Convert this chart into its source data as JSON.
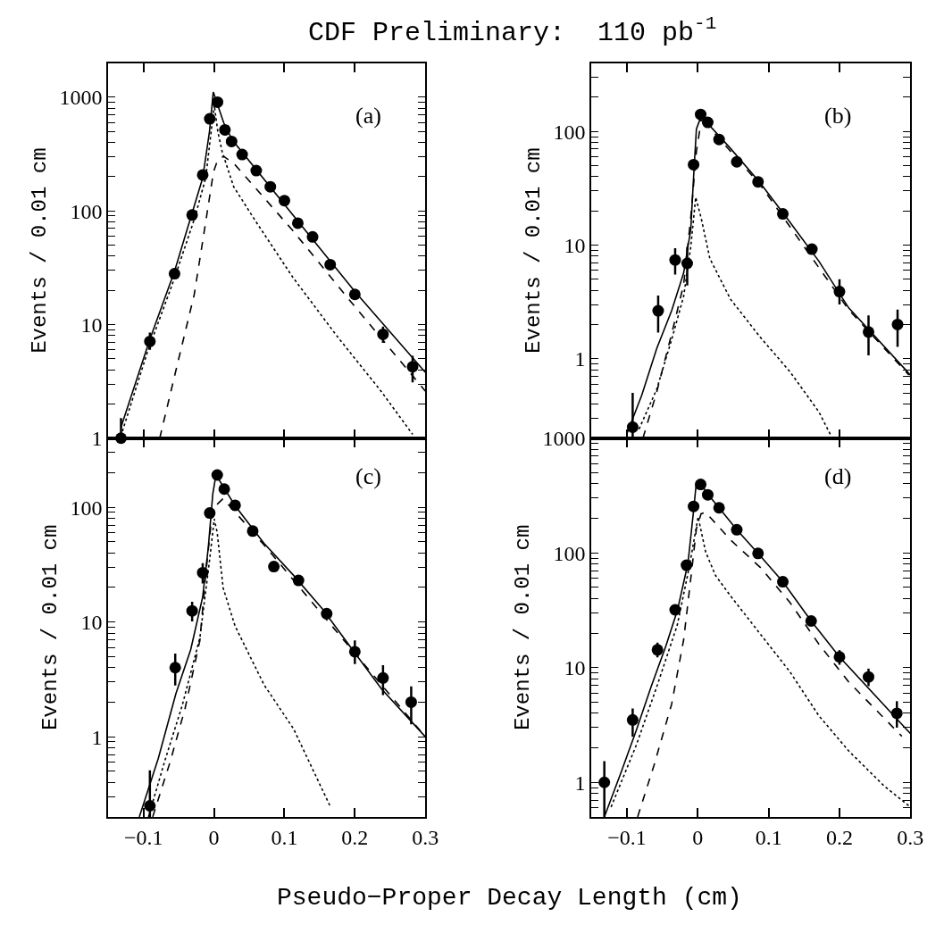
{
  "chart_data": [
    {
      "type": "line",
      "title": "CDF Preliminary:  110 pb$^{-1}$",
      "ylabel": "Events / 0.01 cm",
      "annotations": [
        "(a)"
      ],
      "xlim": [
        -0.15,
        0.3
      ],
      "xticks": [
        {
          "value": -0.1,
          "label": null
        },
        {
          "value": 0,
          "label": null
        },
        {
          "value": 0.1,
          "label": null
        },
        {
          "value": 0.2,
          "label": null
        },
        {
          "value": 0.3,
          "label": null
        }
      ],
      "ylim": [
        1,
        2000
      ],
      "yticks": [
        1,
        {
          "value": 2,
          "label": null
        },
        {
          "value": 3,
          "label": null
        },
        {
          "value": 4,
          "label": null
        },
        {
          "value": 5,
          "label": null
        },
        {
          "value": 6,
          "label": null
        },
        {
          "value": 7,
          "label": null
        },
        {
          "value": 8,
          "label": null
        },
        {
          "value": 9,
          "label": null
        },
        10,
        {
          "value": 20,
          "label": null
        },
        {
          "value": 30,
          "label": null
        },
        {
          "value": 40,
          "label": null
        },
        {
          "value": 50,
          "label": null
        },
        {
          "value": 60,
          "label": null
        },
        {
          "value": 70,
          "label": null
        },
        {
          "value": 80,
          "label": null
        },
        {
          "value": 90,
          "label": null
        },
        100,
        {
          "value": 200,
          "label": null
        },
        {
          "value": 300,
          "label": null
        },
        {
          "value": 400,
          "label": null
        },
        {
          "value": 500,
          "label": null
        },
        {
          "value": 600,
          "label": null
        },
        {
          "value": 700,
          "label": null
        },
        {
          "value": 800,
          "label": null
        },
        {
          "value": 900,
          "label": null
        },
        1000
      ],
      "log": "y",
      "grid": false,
      "tick_labels": "y",
      "series": [
        {
          "type": "scatter",
          "marker": "circle",
          "color": "#000000",
          "x": [
            -0.132,
            -0.091,
            -0.056,
            -0.031,
            -0.016,
            -0.006,
            0.005,
            0.0155,
            0.025,
            0.04,
            0.06,
            0.08,
            0.1,
            0.119,
            0.14,
            0.165,
            0.2,
            0.24,
            0.282
          ],
          "values": [
            1.0,
            7.1,
            28,
            92,
            207,
            646,
            904,
            516,
            408,
            313,
            226,
            163,
            123,
            78,
            59,
            33.6,
            18.4,
            8.2,
            4.25
          ],
          "errors": [
            [
              1,
              1.5
            ],
            [
              6.0,
              8.5
            ],
            null,
            null,
            null,
            null,
            null,
            null,
            null,
            null,
            null,
            null,
            null,
            null,
            null,
            null,
            null,
            [
              6.9,
              9.6
            ],
            [
              3.1,
              5.3
            ]
          ]
        },
        {
          "line_style": "solid",
          "color": "#000000",
          "x": [
            -0.132,
            -0.091,
            -0.056,
            -0.031,
            -0.016,
            -0.0063,
            -0.001,
            0.0137,
            0.026,
            0.2,
            0.3
          ],
          "values": [
            1.25,
            7.4,
            29.5,
            96,
            195,
            503,
            1113,
            598,
            420,
            19.5,
            3.8
          ]
        },
        {
          "line_style": "dashed",
          "color": "#000000",
          "x": [
            -0.077,
            -0.053,
            -0.028,
            -0.0117,
            -0.0007,
            0.005,
            0.0137,
            0.03,
            0.112,
            0.196,
            0.3
          ],
          "values": [
            1.0,
            4.2,
            18.4,
            80,
            220,
            277,
            303,
            254,
            67,
            15.4,
            2.6
          ]
        },
        {
          "line_style": "dotted",
          "color": "#000000",
          "x": [
            -0.13,
            -0.095,
            -0.057,
            -0.028,
            -0.0117,
            0.0004,
            0.0054,
            0.0117,
            0.028,
            0.057,
            0.112,
            0.174,
            0.237,
            0.282
          ],
          "values": [
            1.15,
            5.6,
            24.6,
            84,
            195,
            854,
            500,
            330,
            163,
            85,
            26,
            8,
            2.6,
            1.08
          ]
        }
      ]
    },
    {
      "type": "line",
      "ylabel": "Events / 0.01 cm",
      "annotations": [
        "(b)"
      ],
      "xlim": [
        -0.15,
        0.3
      ],
      "xticks": [
        {
          "value": -0.1,
          "label": null
        },
        {
          "value": 0,
          "label": null
        },
        {
          "value": 0.1,
          "label": null
        },
        {
          "value": 0.2,
          "label": null
        },
        {
          "value": 0.3,
          "label": null
        }
      ],
      "ylim": [
        0.2,
        400
      ],
      "yticks": [
        {
          "value": 0.2,
          "label": null
        },
        {
          "value": 0.3,
          "label": null
        },
        {
          "value": 0.4,
          "label": null
        },
        {
          "value": 0.5,
          "label": null
        },
        {
          "value": 0.6,
          "label": null
        },
        {
          "value": 0.7,
          "label": null
        },
        {
          "value": 0.8,
          "label": null
        },
        {
          "value": 0.9,
          "label": null
        },
        1,
        {
          "value": 2,
          "label": null
        },
        {
          "value": 3,
          "label": null
        },
        {
          "value": 4,
          "label": null
        },
        {
          "value": 5,
          "label": null
        },
        {
          "value": 6,
          "label": null
        },
        {
          "value": 7,
          "label": null
        },
        {
          "value": 8,
          "label": null
        },
        {
          "value": 9,
          "label": null
        },
        10,
        {
          "value": 20,
          "label": null
        },
        {
          "value": 30,
          "label": null
        },
        {
          "value": 40,
          "label": null
        },
        {
          "value": 50,
          "label": null
        },
        {
          "value": 60,
          "label": null
        },
        {
          "value": 70,
          "label": null
        },
        {
          "value": 80,
          "label": null
        },
        {
          "value": 90,
          "label": null
        },
        100,
        {
          "value": 200,
          "label": null
        },
        {
          "value": 300,
          "label": null
        }
      ],
      "log": "y",
      "grid": false,
      "tick_labels": "y",
      "series": [
        {
          "type": "scatter",
          "marker": "circle",
          "color": "#000000",
          "x": [
            -0.092,
            -0.056,
            -0.032,
            -0.015,
            -0.006,
            0.004,
            0.014,
            0.03,
            0.055,
            0.085,
            0.12,
            0.161,
            0.2,
            0.241,
            0.282
          ],
          "values": [
            0.25,
            2.64,
            7.4,
            6.9,
            51,
            141,
            120,
            85,
            54,
            36,
            18.8,
            9.2,
            3.9,
            1.72,
            2.0
          ],
          "errors": [
            [
              0.2,
              0.5
            ],
            [
              1.7,
              3.6
            ],
            [
              5.5,
              9.4
            ],
            [
              4.4,
              9.6
            ],
            null,
            null,
            null,
            null,
            null,
            null,
            null,
            null,
            [
              3.0,
              5.0
            ],
            [
              1.07,
              2.4
            ],
            [
              1.27,
              2.7
            ]
          ]
        },
        {
          "line_style": "solid",
          "color": "#000000",
          "x": [
            -0.1,
            -0.079,
            -0.058,
            -0.037,
            -0.02,
            -0.01,
            -0.006,
            -0.002,
            0.0025,
            0.011,
            0.046,
            0.088,
            0.13,
            0.171,
            0.213,
            0.3
          ],
          "values": [
            0.22,
            0.48,
            1.23,
            2.64,
            5.7,
            13.7,
            39.5,
            105,
            125,
            123,
            71,
            35.3,
            15.9,
            7.2,
            2.8,
            0.72
          ]
        },
        {
          "line_style": "dashed",
          "color": "#000000",
          "x": [
            -0.0775,
            -0.058,
            -0.037,
            -0.02,
            -0.01,
            -0.002,
            0.003,
            0.011,
            0.088,
            0.213,
            0.298
          ],
          "values": [
            0.2,
            0.51,
            1.65,
            4.5,
            17.4,
            67,
            105,
            118,
            34,
            2.7,
            0.72
          ]
        },
        {
          "line_style": "dotted",
          "color": "#000000",
          "x": [
            -0.083,
            -0.058,
            -0.037,
            -0.02,
            -0.01,
            -0.003,
            0.0046,
            0.017,
            0.046,
            0.088,
            0.13,
            0.171,
            0.188
          ],
          "values": [
            0.24,
            0.54,
            1.47,
            3.55,
            9.6,
            26.3,
            17.4,
            7.6,
            3.35,
            1.55,
            0.77,
            0.34,
            0.21
          ]
        }
      ]
    },
    {
      "type": "line",
      "ylabel": "Events / 0.01 cm",
      "xlabel": "Pseudo−Proper Decay Length (cm)",
      "annotations": [
        "(c)"
      ],
      "xlim": [
        -0.15,
        0.3
      ],
      "xticks": [
        {
          "value": -0.1,
          "label": "−0.1"
        },
        0,
        0.1,
        0.2,
        0.3
      ],
      "ylim": [
        0.2,
        400
      ],
      "yticks": [
        {
          "value": 0.2,
          "label": null
        },
        {
          "value": 0.3,
          "label": null
        },
        {
          "value": 0.4,
          "label": null
        },
        {
          "value": 0.5,
          "label": null
        },
        {
          "value": 0.6,
          "label": null
        },
        {
          "value": 0.7,
          "label": null
        },
        {
          "value": 0.8,
          "label": null
        },
        {
          "value": 0.9,
          "label": null
        },
        1,
        {
          "value": 2,
          "label": null
        },
        {
          "value": 3,
          "label": null
        },
        {
          "value": 4,
          "label": null
        },
        {
          "value": 5,
          "label": null
        },
        {
          "value": 6,
          "label": null
        },
        {
          "value": 7,
          "label": null
        },
        {
          "value": 8,
          "label": null
        },
        {
          "value": 9,
          "label": null
        },
        10,
        {
          "value": 20,
          "label": null
        },
        {
          "value": 30,
          "label": null
        },
        {
          "value": 40,
          "label": null
        },
        {
          "value": 50,
          "label": null
        },
        {
          "value": 60,
          "label": null
        },
        {
          "value": 70,
          "label": null
        },
        {
          "value": 80,
          "label": null
        },
        {
          "value": 90,
          "label": null
        },
        100,
        {
          "value": 200,
          "label": null
        },
        {
          "value": 300,
          "label": null
        }
      ],
      "log": "y",
      "grid": false,
      "series": [
        {
          "type": "scatter",
          "marker": "circle",
          "color": "#000000",
          "x": [
            -0.091,
            -0.055,
            -0.031,
            -0.016,
            -0.006,
            0.0046,
            0.0146,
            0.03,
            0.055,
            0.085,
            0.12,
            0.16,
            0.2,
            0.24,
            0.28
          ],
          "values": [
            0.25,
            4.0,
            12.5,
            26.9,
            89,
            191,
            144,
            104,
            62,
            30.4,
            23,
            11.8,
            5.5,
            3.25,
            2.0
          ],
          "errors": [
            [
              0.2,
              0.51
            ],
            [
              2.8,
              5.3
            ],
            [
              10.1,
              15.0
            ],
            [
              21.6,
              32.6
            ],
            null,
            null,
            null,
            null,
            null,
            null,
            null,
            null,
            [
              4.3,
              6.9
            ],
            [
              2.3,
              4.2
            ],
            [
              1.28,
              2.75
            ]
          ]
        },
        {
          "line_style": "solid",
          "color": "#000000",
          "x": [
            -0.106,
            -0.079,
            -0.054,
            -0.033,
            -0.016,
            -0.008,
            -0.0017,
            0.0025,
            0.0067,
            0.03,
            0.071,
            0.113,
            0.154,
            0.196,
            0.238,
            0.3
          ],
          "values": [
            0.2,
            0.65,
            2.38,
            5.75,
            16.6,
            45,
            130,
            186,
            175,
            103,
            48.5,
            25.5,
            13,
            5.8,
            2.6,
            1.0
          ]
        },
        {
          "line_style": "dashed",
          "color": "#000000",
          "x": [
            -0.087,
            -0.062,
            -0.041,
            -0.02,
            -0.012,
            -0.002,
            0.013,
            0.071,
            0.196,
            0.3
          ],
          "values": [
            0.2,
            0.61,
            1.77,
            6.9,
            25,
            97,
            119,
            47,
            5.7,
            1.0
          ]
        },
        {
          "line_style": "dotted",
          "color": "#000000",
          "x": [
            -0.093,
            -0.07,
            -0.045,
            -0.02,
            -0.006,
            0.0004,
            0.0046,
            0.013,
            0.03,
            0.071,
            0.113,
            0.166
          ],
          "values": [
            0.2,
            0.61,
            1.88,
            7.3,
            35.6,
            79,
            60,
            19.8,
            9.2,
            2.84,
            1.17,
            0.24
          ]
        }
      ]
    },
    {
      "type": "line",
      "ylabel": "Events / 0.01 cm",
      "annotations": [
        "(d)"
      ],
      "xlim": [
        -0.15,
        0.3
      ],
      "xticks": [
        {
          "value": -0.1,
          "label": "−0.1"
        },
        0,
        0.1,
        0.2,
        0.3
      ],
      "ylim": [
        0.5,
        1000
      ],
      "yticks": [
        {
          "value": 0.5,
          "label": null
        },
        {
          "value": 0.6,
          "label": null
        },
        {
          "value": 0.7,
          "label": null
        },
        {
          "value": 0.8,
          "label": null
        },
        {
          "value": 0.9,
          "label": null
        },
        1,
        {
          "value": 2,
          "label": null
        },
        {
          "value": 3,
          "label": null
        },
        {
          "value": 4,
          "label": null
        },
        {
          "value": 5,
          "label": null
        },
        {
          "value": 6,
          "label": null
        },
        {
          "value": 7,
          "label": null
        },
        {
          "value": 8,
          "label": null
        },
        {
          "value": 9,
          "label": null
        },
        10,
        {
          "value": 20,
          "label": null
        },
        {
          "value": 30,
          "label": null
        },
        {
          "value": 40,
          "label": null
        },
        {
          "value": 50,
          "label": null
        },
        {
          "value": 60,
          "label": null
        },
        {
          "value": 70,
          "label": null
        },
        {
          "value": 80,
          "label": null
        },
        {
          "value": 90,
          "label": null
        },
        100,
        {
          "value": 200,
          "label": null
        },
        {
          "value": 300,
          "label": null
        },
        {
          "value": 400,
          "label": null
        },
        {
          "value": 500,
          "label": null
        },
        {
          "value": 600,
          "label": null
        },
        {
          "value": 700,
          "label": null
        },
        {
          "value": 800,
          "label": null
        },
        {
          "value": 900,
          "label": null
        },
        1000
      ],
      "log": "y",
      "grid": false,
      "series": [
        {
          "type": "scatter",
          "marker": "circle",
          "color": "#000000",
          "x": [
            -0.132,
            -0.092,
            -0.057,
            -0.032,
            -0.016,
            -0.006,
            0.004,
            0.014,
            0.03,
            0.055,
            0.085,
            0.12,
            0.16,
            0.2,
            0.241,
            0.281
          ],
          "values": [
            1.0,
            3.5,
            14.3,
            31.9,
            78,
            254,
            395,
            321,
            247,
            159,
            99,
            56,
            25.5,
            12.4,
            8.3,
            4.0
          ],
          "errors": [
            [
              0.5,
              1.53
            ],
            [
              2.5,
              4.4
            ],
            [
              12.3,
              16.5
            ],
            null,
            null,
            null,
            null,
            null,
            null,
            null,
            null,
            null,
            null,
            [
              10.6,
              14.2
            ],
            [
              6.9,
              9.8
            ],
            [
              3.0,
              5.1
            ]
          ]
        },
        {
          "line_style": "solid",
          "color": "#000000",
          "x": [
            -0.132,
            -0.108,
            -0.087,
            -0.066,
            -0.045,
            -0.029,
            -0.014,
            -0.006,
            -0.002,
            0.0025,
            0.013,
            0.03,
            0.055,
            0.085,
            0.12,
            0.16,
            0.2,
            0.3
          ],
          "values": [
            0.5,
            1.24,
            2.83,
            6.8,
            15.5,
            31.3,
            80.6,
            233,
            418,
            422,
            330,
            247,
            159,
            99,
            56,
            25.5,
            12.4,
            2.67
          ]
        },
        {
          "line_style": "dashed",
          "color": "#000000",
          "x": [
            -0.085,
            -0.062,
            -0.037,
            -0.02,
            -0.008,
            -0.002,
            0.0046,
            0.011,
            0.046,
            0.088,
            0.13,
            0.171,
            0.213,
            0.288
          ],
          "values": [
            0.5,
            1.4,
            4.8,
            17.5,
            76,
            163,
            219,
            226,
            130,
            75,
            37,
            16,
            7.5,
            2.52
          ]
        },
        {
          "line_style": "dotted",
          "color": "#000000",
          "x": [
            -0.1225,
            -0.087,
            -0.058,
            -0.029,
            -0.012,
            0.0004,
            0.011,
            0.025,
            0.046,
            0.088,
            0.13,
            0.171,
            0.213,
            0.263,
            0.3
          ],
          "values": [
            0.61,
            2.1,
            6.8,
            23.5,
            75.8,
            206,
            102,
            63.5,
            42.3,
            19.7,
            9.2,
            3.8,
            1.88,
            0.93,
            0.61
          ]
        }
      ]
    }
  ]
}
